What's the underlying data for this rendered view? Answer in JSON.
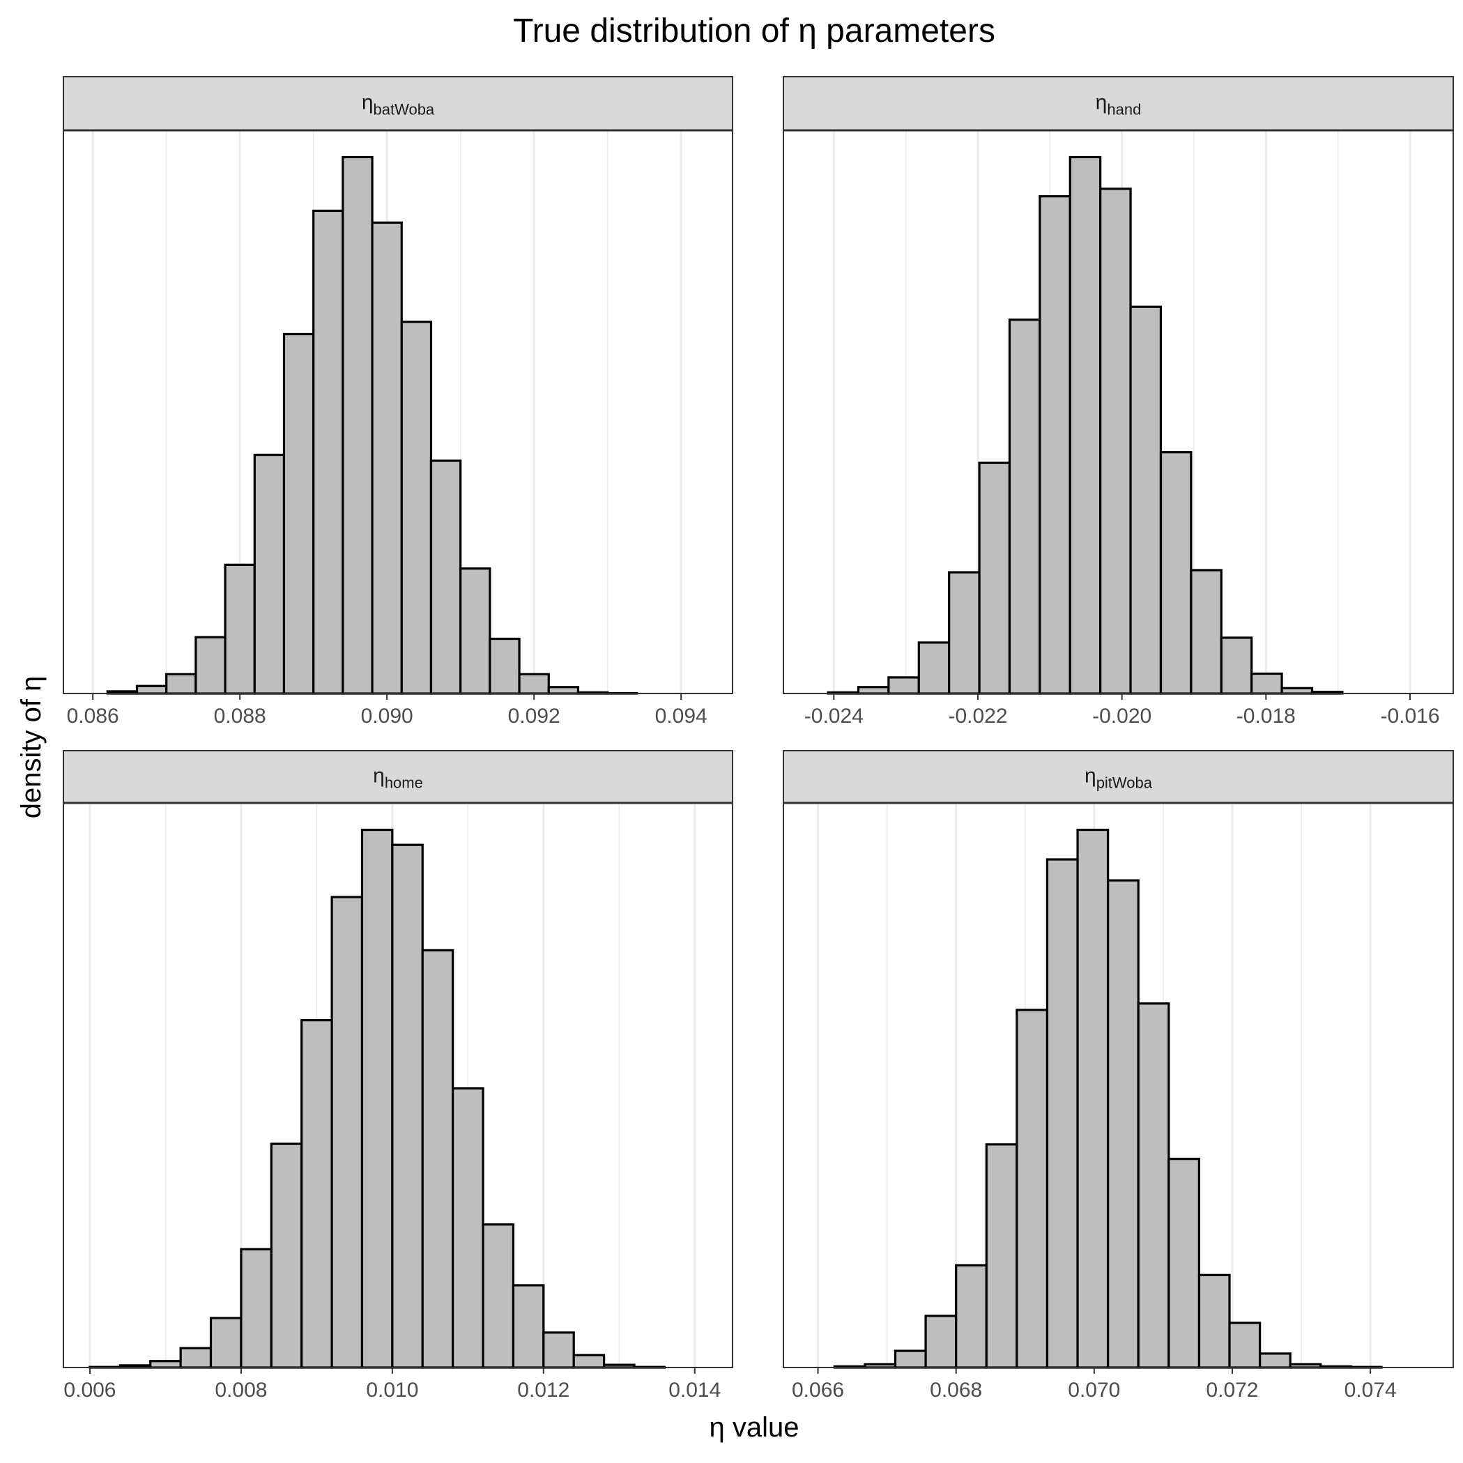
{
  "chart_data": {
    "type": "bar",
    "title": "True distribution of η parameters",
    "xlabel": "η value",
    "ylabel": "density of η",
    "grid": "vertical",
    "panels": [
      {
        "facet": "η_batWoba",
        "label_main": "η",
        "label_sub": "batWoba",
        "xlim": [
          0.0856,
          0.0947
        ],
        "ticks": [
          "0.086",
          "0.088",
          "0.090",
          "0.092",
          "0.094"
        ],
        "tick_values": [
          0.086,
          0.088,
          0.09,
          0.092,
          0.094
        ],
        "bin_start": 0.0858,
        "bin_width": 0.0004,
        "values": [
          0.0,
          0.4,
          1.4,
          3.6,
          10.5,
          24.0,
          44.5,
          67.0,
          90.0,
          100.0,
          87.8,
          69.3,
          43.4,
          23.3,
          10.2,
          3.6,
          1.2,
          0.2,
          0.05,
          0.0
        ]
      },
      {
        "facet": "η_hand",
        "label_main": "η",
        "label_sub": "hand",
        "xlim": [
          -0.0247,
          -0.0154
        ],
        "ticks": [
          "-0.024",
          "-0.022",
          "-0.020",
          "-0.018",
          "-0.016"
        ],
        "tick_values": [
          -0.024,
          -0.022,
          -0.02,
          -0.018,
          -0.016
        ],
        "bin_start": -0.0245,
        "bin_width": 0.00042,
        "values": [
          0.0,
          0.2,
          1.2,
          3.0,
          9.5,
          22.6,
          43.0,
          69.7,
          92.7,
          100.0,
          94.1,
          72.1,
          45.0,
          23.0,
          10.4,
          3.7,
          1.0,
          0.3,
          0.0,
          0.0
        ]
      },
      {
        "facet": "η_home",
        "label_main": "η",
        "label_sub": "home",
        "xlim": [
          0.00565,
          0.0145
        ],
        "ticks": [
          "0.006",
          "0.008",
          "0.010",
          "0.012",
          "0.014"
        ],
        "tick_values": [
          0.006,
          0.008,
          0.01,
          0.012,
          0.014
        ],
        "bin_start": 0.006,
        "bin_width": 0.0004,
        "values": [
          0.1,
          0.4,
          1.2,
          3.6,
          9.2,
          22.0,
          41.6,
          64.6,
          87.5,
          100.0,
          97.2,
          77.6,
          51.9,
          26.6,
          15.3,
          6.5,
          2.3,
          0.5,
          0.1,
          0.0
        ]
      },
      {
        "facet": "η_pitWoba",
        "label_main": "η",
        "label_sub": "pitWoba",
        "xlim": [
          0.0655,
          0.0752
        ],
        "ticks": [
          "0.066",
          "0.068",
          "0.070",
          "0.072",
          "0.074"
        ],
        "tick_values": [
          0.066,
          0.068,
          0.07,
          0.072,
          0.074
        ],
        "bin_start": 0.0658,
        "bin_width": 0.00044,
        "values": [
          0.0,
          0.2,
          0.6,
          3.1,
          9.6,
          19.0,
          41.5,
          66.5,
          94.5,
          100.0,
          90.6,
          67.7,
          38.8,
          17.2,
          8.3,
          2.6,
          0.6,
          0.2,
          0.1,
          0.0
        ]
      }
    ]
  }
}
